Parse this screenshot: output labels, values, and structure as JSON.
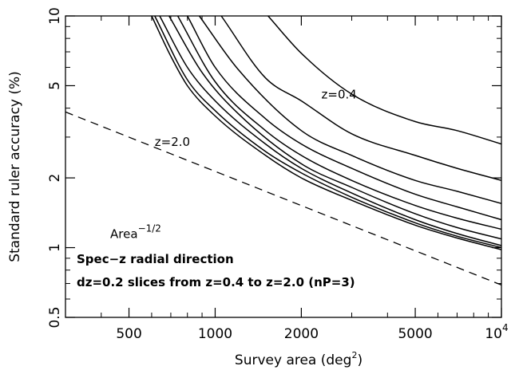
{
  "chart_data": {
    "type": "line",
    "xlabel": "Survey area (deg",
    "xlabel_sup": "2",
    "xlabel_close": ")",
    "ylabel": "Standard ruler accuracy (%)",
    "x_scale": "log",
    "y_scale": "log",
    "xlim": [
      300,
      10000
    ],
    "ylim": [
      0.5,
      10
    ],
    "grid": false,
    "legend": "none",
    "x_ticks": [
      {
        "value": 500,
        "label": "500"
      },
      {
        "value": 1000,
        "label": "1000"
      },
      {
        "value": 2000,
        "label": "2000"
      },
      {
        "value": 5000,
        "label": "5000"
      },
      {
        "value": 10000,
        "label": "10",
        "sup": "4"
      }
    ],
    "y_ticks": [
      {
        "value": 0.5,
        "label": "0.5"
      },
      {
        "value": 1,
        "label": "1"
      },
      {
        "value": 2,
        "label": "2"
      },
      {
        "value": 5,
        "label": "5"
      },
      {
        "value": 10,
        "label": "10"
      }
    ],
    "x_minor_ticks": [
      300,
      400,
      600,
      700,
      800,
      900,
      3000,
      4000,
      6000,
      7000,
      8000,
      9000
    ],
    "y_minor_ticks": [
      0.6,
      0.7,
      0.8,
      0.9,
      3,
      4,
      6,
      7,
      8,
      9
    ],
    "series": [
      {
        "x": [
          1530,
          2000,
          3000,
          5000,
          7000,
          10000
        ],
        "y": [
          10,
          6.9,
          4.6,
          3.5,
          3.2,
          2.8
        ],
        "style": "solid"
      },
      {
        "x": [
          1050,
          1500,
          2000,
          3000,
          5000,
          7000,
          10000
        ],
        "y": [
          10,
          5.4,
          4.3,
          3.1,
          2.5,
          2.2,
          1.95
        ],
        "style": "solid"
      },
      {
        "x": [
          880,
          1200,
          2000,
          3000,
          5000,
          7000,
          10000
        ],
        "y": [
          10,
          5.9,
          3.2,
          2.5,
          1.95,
          1.75,
          1.55
        ],
        "style": "solid"
      },
      {
        "x": [
          800,
          1000,
          1500,
          2000,
          3000,
          5000,
          7000,
          10000
        ],
        "y": [
          10,
          6.0,
          3.6,
          2.8,
          2.2,
          1.7,
          1.5,
          1.32
        ],
        "style": "solid"
      },
      {
        "x": [
          740,
          1000,
          1500,
          2000,
          3000,
          5000,
          7000,
          10000
        ],
        "y": [
          10,
          5.2,
          3.2,
          2.5,
          1.95,
          1.52,
          1.34,
          1.2
        ],
        "style": "solid"
      },
      {
        "x": [
          690,
          900,
          1200,
          2000,
          3000,
          5000,
          7000,
          10000
        ],
        "y": [
          10,
          5.7,
          3.8,
          2.3,
          1.82,
          1.4,
          1.22,
          1.09
        ],
        "style": "solid"
      },
      {
        "x": [
          640,
          800,
          1000,
          1500,
          2000,
          3000,
          5000,
          7000,
          10000
        ],
        "y": [
          10,
          6.0,
          4.3,
          2.8,
          2.2,
          1.72,
          1.32,
          1.15,
          1.02
        ],
        "style": "solid"
      },
      {
        "x": [
          615,
          800,
          1000,
          1500,
          2000,
          3000,
          5000,
          7000,
          10000
        ],
        "y": [
          10,
          5.3,
          3.9,
          2.6,
          2.1,
          1.65,
          1.28,
          1.12,
          1.0
        ],
        "style": "solid"
      },
      {
        "x": [
          600,
          700,
          800,
          1000,
          1500,
          2000,
          3000,
          5000,
          7000,
          10000
        ],
        "y": [
          10,
          6.7,
          5.0,
          3.7,
          2.5,
          2.0,
          1.6,
          1.25,
          1.1,
          0.98
        ],
        "style": "solid"
      },
      {
        "x": [
          300,
          10000
        ],
        "y": [
          3.85,
          0.69
        ],
        "style": "dashed"
      }
    ],
    "annotations": [
      {
        "text": "z=0.4",
        "x": 2350,
        "y": 4.4
      },
      {
        "text": "z=2.0",
        "x": 615,
        "y": 2.75
      },
      {
        "text": "Area",
        "x": 430,
        "y": 1.1,
        "sup": "−1/2"
      }
    ],
    "notes": [
      "Spec−z radial direction",
      "dz=0.2 slices from z=0.4 to z=2.0 (nP=3)"
    ]
  }
}
